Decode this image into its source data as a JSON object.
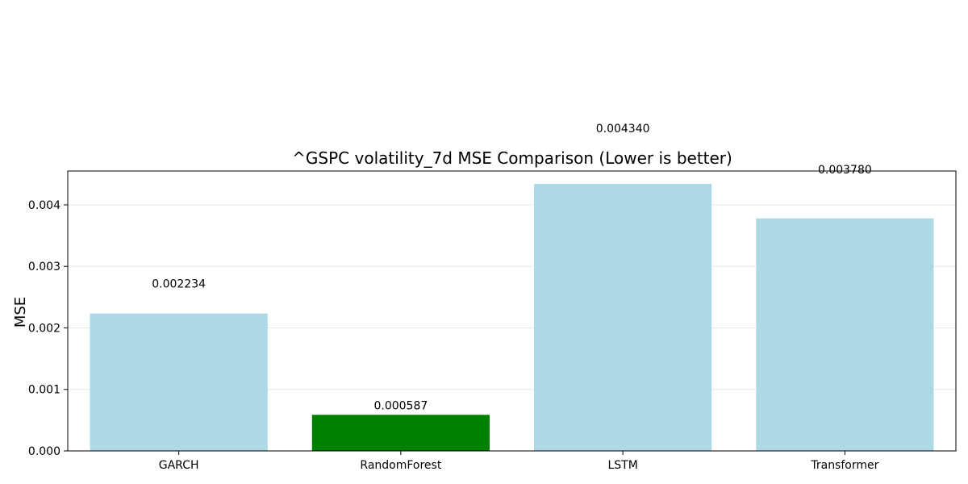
{
  "chart_data": {
    "type": "bar",
    "title": "^GSPC volatility_7d MSE Comparison (Lower is better)",
    "xlabel": "",
    "ylabel": "MSE",
    "categories": [
      "GARCH",
      "RandomForest",
      "LSTM",
      "Transformer"
    ],
    "values": [
      0.002234,
      0.000587,
      0.00434,
      0.00378
    ],
    "data_labels": [
      "0.002234",
      "0.000587",
      "0.004340",
      "0.003780"
    ],
    "bar_colors": [
      "#add8e6",
      "#008000",
      "#add8e6",
      "#add8e6"
    ],
    "yticks": [
      0.0,
      0.001,
      0.002,
      0.003,
      0.004
    ],
    "ytick_labels": [
      "0.000",
      "0.001",
      "0.002",
      "0.003",
      "0.004"
    ],
    "ylim": [
      0,
      0.00455
    ],
    "grid": "y",
    "legend": "none"
  }
}
